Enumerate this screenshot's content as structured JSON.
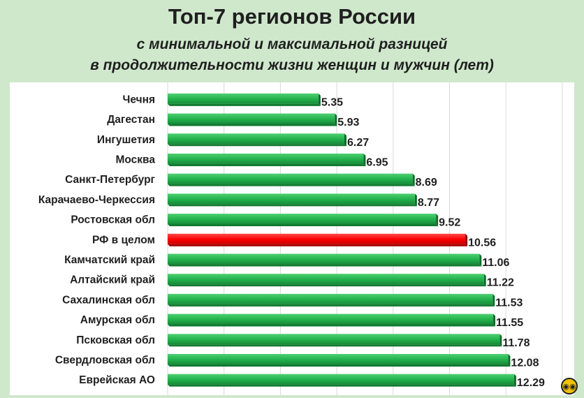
{
  "chart_data": {
    "type": "bar",
    "orientation": "horizontal",
    "title": "Топ-7 регионов России",
    "subtitle_line1": "с минимальной и максимальной разницей",
    "subtitle_line2": "в продолжительности жизни женщин и мужчин (лет)",
    "categories": [
      "Чечня",
      "Дагестан",
      "Ингушетия",
      "Москва",
      "Санкт-Петербург",
      "Карачаево-Черкессия",
      "Ростовская обл",
      "РФ в целом",
      "Камчатский край",
      "Алтайский край",
      "Сахалинская обл",
      "Амурская обл",
      "Псковская обл",
      "Свердловская обл",
      "Еврейская АО"
    ],
    "values": [
      5.35,
      5.93,
      6.27,
      6.95,
      8.69,
      8.77,
      9.52,
      10.56,
      11.06,
      11.22,
      11.53,
      11.55,
      11.78,
      12.08,
      12.29
    ],
    "value_labels": [
      "5.35",
      "5.93",
      "6.27",
      "6.95",
      "8.69",
      "8.77",
      "9.52",
      "10.56",
      "11.06",
      "11.22",
      "11.53",
      "11.55",
      "11.78",
      "12.08",
      "12.29"
    ],
    "highlight_category": "РФ в целом",
    "colors": {
      "bar": "#22b14c",
      "highlight": "#ff0000",
      "background": "#cfe8cc",
      "plot_background": "#ffffff",
      "grid": "#d9d9d9"
    },
    "xlim": [
      0,
      14
    ],
    "grid": true,
    "legend": "none"
  },
  "logo": {
    "icon": "owl-logo-icon"
  }
}
